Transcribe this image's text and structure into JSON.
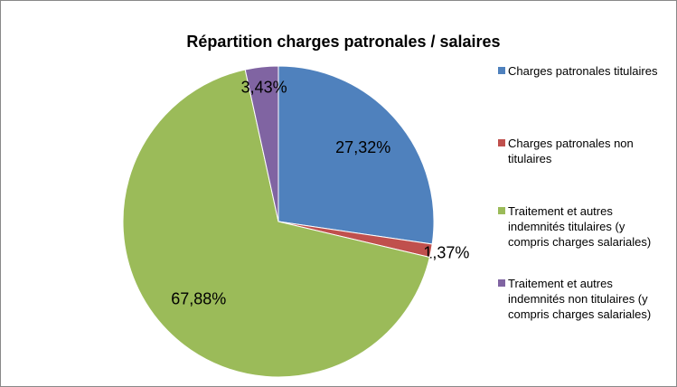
{
  "chart_data": {
    "type": "pie",
    "title": "Répartition charges patronales / salaires",
    "categories": [
      "Charges patronales titulaires",
      "Charges patronales non titulaires",
      "Traitement et autres indemnités titulaires (y compris charges salariales)",
      "Traitement et autres indemnités non titulaires (y compris charges salariales)"
    ],
    "values": [
      27.32,
      1.37,
      67.88,
      3.43
    ],
    "value_labels": [
      "27,32%",
      "1,37%",
      "67,88%",
      "3,43%"
    ],
    "colors": [
      "#4f81bd",
      "#c0504d",
      "#9bbb59",
      "#8064a2"
    ],
    "legend": "right"
  }
}
